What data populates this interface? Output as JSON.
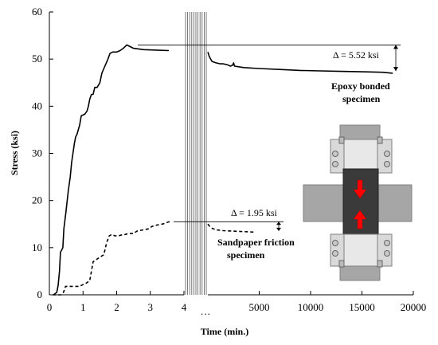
{
  "chart_data": {
    "type": "line",
    "xlabel": "Time (min.)",
    "ylabel": "Stress (ksi)",
    "ylim": [
      0,
      60
    ],
    "yticks": [
      "0",
      "10",
      "20",
      "30",
      "40",
      "50",
      "60"
    ],
    "axis_break_marker": "…",
    "left_panel": {
      "xlim": [
        0,
        4
      ],
      "xticks": [
        "0",
        "1",
        "2",
        "3",
        "4"
      ]
    },
    "right_panel": {
      "xlim": [
        0,
        20000
      ],
      "xticks": [
        "5000",
        "10000",
        "15000",
        "20000"
      ]
    },
    "series": [
      {
        "name": "Epoxy bonded specimen",
        "style": "solid",
        "left": [
          [
            0.12,
            0
          ],
          [
            0.22,
            0.5
          ],
          [
            0.26,
            2
          ],
          [
            0.3,
            5
          ],
          [
            0.33,
            9
          ],
          [
            0.4,
            10
          ],
          [
            0.43,
            14
          ],
          [
            0.5,
            18
          ],
          [
            0.56,
            22
          ],
          [
            0.62,
            25
          ],
          [
            0.66,
            28
          ],
          [
            0.7,
            30
          ],
          [
            0.74,
            32
          ],
          [
            0.78,
            33.5
          ],
          [
            0.82,
            34
          ],
          [
            0.86,
            35
          ],
          [
            0.9,
            36
          ],
          [
            0.95,
            38
          ],
          [
            1.05,
            38.3
          ],
          [
            1.12,
            39
          ],
          [
            1.16,
            40
          ],
          [
            1.2,
            41.5
          ],
          [
            1.25,
            42.5
          ],
          [
            1.3,
            42.5
          ],
          [
            1.35,
            44
          ],
          [
            1.42,
            44
          ],
          [
            1.5,
            45
          ],
          [
            1.56,
            47
          ],
          [
            1.62,
            48
          ],
          [
            1.68,
            49
          ],
          [
            1.74,
            50
          ],
          [
            1.8,
            51.2
          ],
          [
            1.88,
            51.5
          ],
          [
            2.0,
            51.5
          ],
          [
            2.1,
            51.8
          ],
          [
            2.2,
            52.3
          ],
          [
            2.3,
            53
          ],
          [
            2.5,
            52.3
          ],
          [
            2.8,
            52
          ],
          [
            3.2,
            51.9
          ],
          [
            3.55,
            51.8
          ]
        ],
        "right": [
          [
            0,
            51.5
          ],
          [
            150,
            50.5
          ],
          [
            400,
            49.5
          ],
          [
            800,
            49.2
          ],
          [
            1200,
            49.0
          ],
          [
            1500,
            49.0
          ],
          [
            1900,
            48.8
          ],
          [
            2200,
            48.5
          ],
          [
            2400,
            48.7
          ],
          [
            2500,
            49.2
          ],
          [
            2600,
            48.5
          ],
          [
            3500,
            48.2
          ],
          [
            5000,
            48.0
          ],
          [
            7000,
            47.8
          ],
          [
            9000,
            47.6
          ],
          [
            11000,
            47.5
          ],
          [
            13000,
            47.4
          ],
          [
            15000,
            47.3
          ],
          [
            17000,
            47.2
          ],
          [
            18000,
            47.0
          ]
        ]
      },
      {
        "name": "Sandpaper friction specimen",
        "style": "dashed",
        "left": [
          [
            0.1,
            0
          ],
          [
            0.35,
            0
          ],
          [
            0.42,
            0.5
          ],
          [
            0.48,
            1.8
          ],
          [
            0.9,
            1.8
          ],
          [
            0.95,
            2
          ],
          [
            1.1,
            2.5
          ],
          [
            1.2,
            3
          ],
          [
            1.3,
            7
          ],
          [
            1.4,
            7.5
          ],
          [
            1.5,
            8
          ],
          [
            1.62,
            8.5
          ],
          [
            1.7,
            11
          ],
          [
            1.78,
            12.5
          ],
          [
            1.85,
            12.8
          ],
          [
            1.95,
            12.5
          ],
          [
            2.05,
            12.5
          ],
          [
            2.15,
            12.7
          ],
          [
            2.25,
            12.8
          ],
          [
            2.35,
            13
          ],
          [
            2.5,
            13
          ],
          [
            2.6,
            13.5
          ],
          [
            2.8,
            13.8
          ],
          [
            2.95,
            14
          ],
          [
            3.05,
            14.5
          ],
          [
            3.2,
            14.8
          ],
          [
            3.35,
            15
          ],
          [
            3.45,
            15.2
          ],
          [
            3.55,
            15.5
          ],
          [
            3.6,
            15.3
          ]
        ],
        "right": [
          [
            0,
            15.0
          ],
          [
            300,
            14.2
          ],
          [
            800,
            13.8
          ],
          [
            1500,
            13.6
          ],
          [
            2500,
            13.5
          ],
          [
            3500,
            13.4
          ],
          [
            4500,
            13.3
          ]
        ]
      }
    ],
    "annotations": [
      {
        "id": "epoxy-delta",
        "text": "Δ = 5.52 ksi",
        "from_y": 53.0,
        "to_y": 47.48
      },
      {
        "id": "sandpaper-delta",
        "text": "Δ = 1.95 ksi",
        "from_y": 15.5,
        "to_y": 13.55
      }
    ],
    "labels": {
      "epoxy": [
        "Epoxy bonded",
        "specimen"
      ],
      "sandpaper": [
        "Sandpaper friction",
        "specimen"
      ]
    },
    "inset": {
      "description": "test-fixture",
      "arrow_color": "#ff0000",
      "plate_color": "#a6a6a6",
      "specimen_color": "#3a3a3a"
    }
  }
}
